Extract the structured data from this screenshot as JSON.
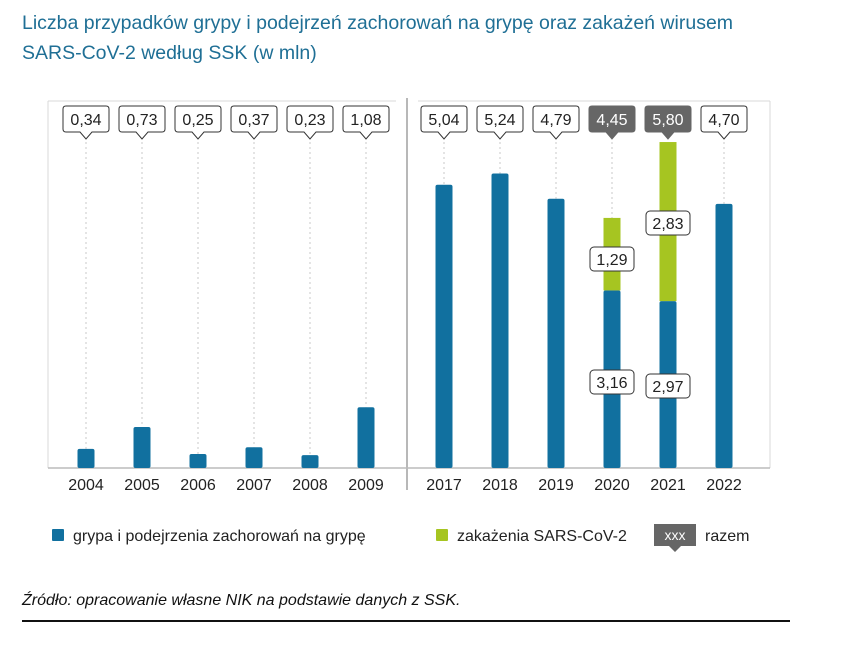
{
  "title_line1": "Liczba przypadków grypy i podejrzeń zachorowań na grypę oraz zakażeń wirusem",
  "title_line2": "SARS-CoV-2 według SSK (w mln)",
  "source": "Źródło: opracowanie własne NIK na podstawie danych z SSK.",
  "colors": {
    "flu": "#11709f",
    "covid": "#a6c521",
    "total_dark": "#666666",
    "grid": "#c8c8c8"
  },
  "chart_data": {
    "type": "bar",
    "stacked": true,
    "categories": [
      "2004",
      "2005",
      "2006",
      "2007",
      "2008",
      "2009",
      "2017",
      "2018",
      "2019",
      "2020",
      "2021",
      "2022"
    ],
    "series": [
      {
        "name": "grypa i podejrzenia zachorowań na grypę",
        "values": [
          0.34,
          0.73,
          0.25,
          0.37,
          0.23,
          1.08,
          5.04,
          5.24,
          4.79,
          3.16,
          2.97,
          4.7
        ]
      },
      {
        "name": "zakażenia SARS-CoV-2",
        "values": [
          0,
          0,
          0,
          0,
          0,
          0,
          0,
          0,
          0,
          1.29,
          2.83,
          0
        ]
      }
    ],
    "totals_labels": [
      "0,34",
      "0,73",
      "0,25",
      "0,37",
      "0,23",
      "1,08",
      "5,04",
      "5,24",
      "4,79",
      "4,45",
      "5,80",
      "4,70"
    ],
    "totals_dark": [
      false,
      false,
      false,
      false,
      false,
      false,
      false,
      false,
      false,
      true,
      true,
      false
    ],
    "segment_labels": [
      {
        "category": "2020",
        "flu": "3,16",
        "covid": "1,29"
      },
      {
        "category": "2021",
        "flu": "2,97",
        "covid": "2,83"
      }
    ],
    "axis_break_after": "2009",
    "legend": {
      "flu": "grypa i podejrzenia zachorowań na grypę",
      "covid": "zakażenia SARS-CoV-2",
      "total_box": "xxx",
      "total": "razem"
    },
    "grid": true
  }
}
